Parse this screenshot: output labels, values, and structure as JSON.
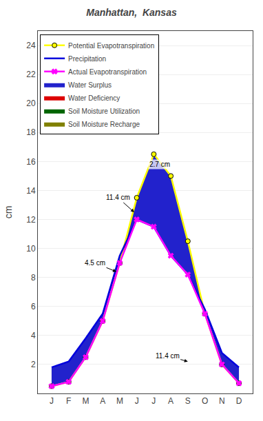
{
  "chart_data": {
    "type": "line",
    "title": "Manhattan,  Kansas",
    "categories": [
      "J",
      "F",
      "M",
      "A",
      "M",
      "J",
      "J",
      "A",
      "S",
      "O",
      "N",
      "D"
    ],
    "ylabel": "cm",
    "ylim": [
      0,
      25
    ],
    "yticks": [
      2,
      4,
      6,
      8,
      10,
      12,
      14,
      16,
      18,
      20,
      22,
      24
    ],
    "grid": true,
    "legend": "upper left",
    "series": [
      {
        "name": "Potential Evapotranspiration",
        "type": "line",
        "color": "#ffff00",
        "marker": "circle",
        "values": [
          0.5,
          0.8,
          2.5,
          5.0,
          9.0,
          13.5,
          16.5,
          15.0,
          10.5,
          5.5,
          2.0,
          0.7
        ]
      },
      {
        "name": "Precipitation",
        "type": "line",
        "color": "#0000dd",
        "values": [
          1.8,
          2.2,
          3.8,
          5.5,
          9.5,
          12.0,
          11.5,
          9.5,
          8.2,
          5.8,
          2.8,
          1.8
        ]
      },
      {
        "name": "Actual Evapotranspiration",
        "type": "line",
        "color": "#ff00ff",
        "marker": "x",
        "values": [
          0.5,
          0.8,
          2.5,
          5.0,
          9.0,
          12.0,
          11.5,
          9.5,
          8.2,
          5.5,
          2.0,
          0.7
        ]
      },
      {
        "name": "Water Surplus",
        "type": "area",
        "color": "#2222cc",
        "between": [
          "Potential Evapotranspiration",
          "Precipitation"
        ]
      },
      {
        "name": "Water Deficiency",
        "type": "area",
        "color": "#dd0000",
        "between": [
          "Actual Evapotranspiration",
          "Potential Evapotranspiration"
        ]
      },
      {
        "name": "Soil Moisture Utilization",
        "type": "area",
        "color": "#006400",
        "between": [
          "Precipitation",
          "Actual Evapotranspiration"
        ]
      },
      {
        "name": "Soil Moisture Recharge",
        "type": "area",
        "color": "#808000",
        "between": [
          "Actual Evapotranspiration",
          "Precipitation"
        ]
      }
    ],
    "annotations": [
      {
        "text": "2.7 cm",
        "text_x": 6.35,
        "text_y": 15.8,
        "x": 6.05,
        "y": 15.55
      },
      {
        "text": "11.4 cm",
        "text_x": 3.9,
        "text_y": 13.5,
        "x": 4.85,
        "y": 12.5
      },
      {
        "text": "4.5 cm",
        "text_x": 2.55,
        "text_y": 9.0,
        "x": 3.8,
        "y": 8.4
      },
      {
        "text": "11.4 cm",
        "text_x": 6.8,
        "text_y": 2.6,
        "x": 8.0,
        "y": 2.2
      }
    ]
  }
}
